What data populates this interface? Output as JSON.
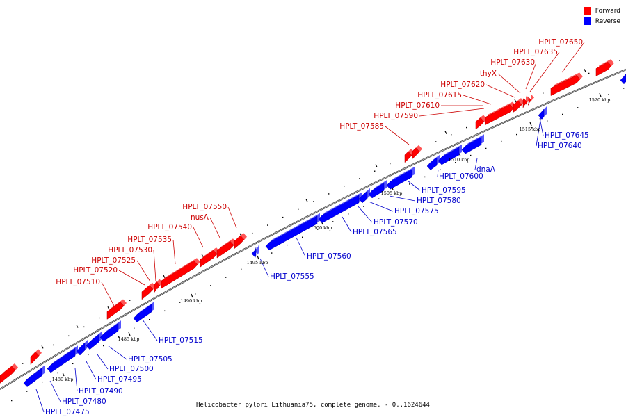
{
  "legend": [
    {
      "label": "Forward",
      "color": "#ff0000"
    },
    {
      "label": "Reverse",
      "color": "#0000ff"
    }
  ],
  "caption": "Helicobacter pylori Lithuania75, complete genome. - 0..1624644",
  "colors": {
    "forward": "#ff0000",
    "reverse": "#0000ff",
    "backbone": "#888888",
    "forward_label": "#cc0000",
    "reverse_label": "#0000cc"
  },
  "coordinate_labels": [
    "1480 kbp",
    "1485 kbp",
    "1490 kbp",
    "1495 kbp",
    "1500 kbp",
    "1505 kbp",
    "1510 kbp",
    "1515 kbp",
    "1520 kbp"
  ],
  "forward_genes": [
    "HPLT_07510",
    "HPLT_07520",
    "HPLT_07525",
    "HPLT_07530",
    "HPLT_07535",
    "HPLT_07540",
    "nusA",
    "HPLT_07550",
    "HPLT_07585",
    "HPLT_07590",
    "HPLT_07610",
    "HPLT_07615",
    "HPLT_07620",
    "thyX",
    "HPLT_07630",
    "HPLT_07635",
    "HPLT_07650"
  ],
  "reverse_genes": [
    "HPLT_07475",
    "HPLT_07480",
    "HPLT_07490",
    "HPLT_07495",
    "HPLT_07500",
    "HPLT_07505",
    "HPLT_07515",
    "HPLT_07555",
    "HPLT_07560",
    "HPLT_07565",
    "HPLT_07570",
    "HPLT_07575",
    "HPLT_07580",
    "HPLT_07595",
    "HPLT_07600",
    "dnaA",
    "HPLT_07640",
    "HPLT_07645"
  ]
}
